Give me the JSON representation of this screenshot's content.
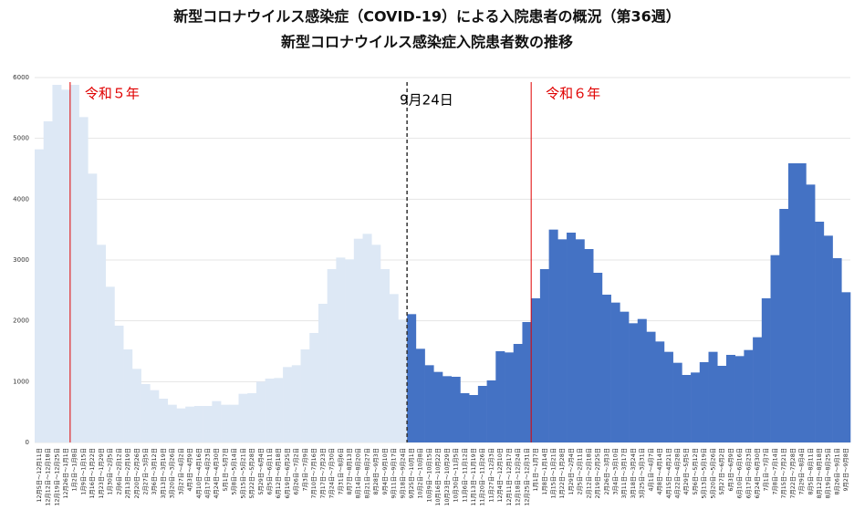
{
  "chart_data": {
    "type": "bar",
    "title": "新型コロナウイルス感染症（COVID-19）による入院患者の概況（第36週）",
    "subtitle": "新型コロナウイルス感染症入院患者数の推移",
    "categories": [
      "12月5日～12月11日",
      "12月12日～12月18日",
      "12月19日～12月25日",
      "12月26日～1月1日",
      "1月2日～1月8日",
      "1月9日～1月15日",
      "1月16日～1月22日",
      "1月23日～1月29日",
      "1月30日～2月5日",
      "2月6日～2月12日",
      "2月13日～2月19日",
      "2月20日～2月26日",
      "2月27日～3月5日",
      "3月6日～3月12日",
      "3月13日～3月19日",
      "3月20日～3月26日",
      "3月27日～4月2日",
      "4月3日～4月9日",
      "4月10日～4月16日",
      "4月17日～4月23日",
      "4月24日～4月30日",
      "5月1日～5月7日",
      "5月8日～5月14日",
      "5月15日～5月21日",
      "5月22日～5月28日",
      "5月29日～6月4日",
      "6月5日～6月11日",
      "6月12日～6月18日",
      "6月19日～6月25日",
      "6月26日～7月2日",
      "7月3日～7月9日",
      "7月10日～7月16日",
      "7月17日～7月23日",
      "7月24日～7月30日",
      "7月31日～8月6日",
      "8月7日～8月13日",
      "8月14日～8月20日",
      "8月21日～8月27日",
      "8月28日～9月3日",
      "9月4日～9月10日",
      "9月11日～9月17日",
      "9月18日～9月24日",
      "9月25日～10月1日",
      "10月2日～10月8日",
      "10月9日～10月15日",
      "10月16日～10月22日",
      "10月23日～10月29日",
      "10月30日～11月5日",
      "11月6日～11月12日",
      "11月13日～11月19日",
      "11月20日～11月26日",
      "11月27日～12月3日",
      "12月4日～12月10日",
      "12月11日～12月17日",
      "12月18日～12月24日",
      "12月25日～12月31日",
      "1月1日～1月7日",
      "1月8日～1月14日",
      "1月15日～1月21日",
      "1月22日～1月28日",
      "1月29日～2月4日",
      "2月5日～2月11日",
      "2月12日～2月18日",
      "2月19日～2月25日",
      "2月26日～3月3日",
      "3月4日～3月10日",
      "3月11日～3月17日",
      "3月18日～3月24日",
      "3月25日～3月31日",
      "4月1日～4月7日",
      "4月8日～4月14日",
      "4月15日～4月21日",
      "4月22日～4月28日",
      "4月29日～5月5日",
      "5月6日～5月12日",
      "5月13日～5月19日",
      "5月20日～5月26日",
      "5月27日～6月2日",
      "6月3日～6月9日",
      "6月10日～6月16日",
      "6月17日～6月23日",
      "6月24日～6月30日",
      "7月1日～7月7日",
      "7月8日～7月14日",
      "7月15日～7月21日",
      "7月22日～7月28日",
      "7月29日～8月4日",
      "8月5日～8月11日",
      "8月12日～8月18日",
      "8月19日～8月25日",
      "8月26日～9月1日",
      "9月2日～9月8日"
    ],
    "series": [
      {
        "color": "#dde8f5",
        "values": [
          4820,
          5280,
          5880,
          5800,
          5880,
          5350,
          4420,
          3250,
          2560,
          1920,
          1530,
          1210,
          960,
          860,
          720,
          620,
          560,
          590,
          600,
          600,
          680,
          620,
          620,
          800,
          810,
          1000,
          1050,
          1060,
          1240,
          1270,
          1530,
          1800,
          2280,
          2850,
          3040,
          3010,
          3350,
          3430,
          3250,
          2850,
          2440,
          2020,
          null,
          null,
          null,
          null,
          null,
          null,
          null,
          null,
          null,
          null,
          null,
          null,
          null,
          null,
          null,
          null,
          null,
          null,
          null,
          null,
          null,
          null,
          null,
          null,
          null,
          null,
          null,
          null,
          null,
          null,
          null,
          null,
          null,
          null,
          null,
          null,
          null,
          null,
          null,
          null,
          null,
          null,
          null,
          null,
          null,
          null,
          null,
          null,
          null,
          null
        ]
      },
      {
        "color": "#4472c4",
        "values": [
          null,
          null,
          null,
          null,
          null,
          null,
          null,
          null,
          null,
          null,
          null,
          null,
          null,
          null,
          null,
          null,
          null,
          null,
          null,
          null,
          null,
          null,
          null,
          null,
          null,
          null,
          null,
          null,
          null,
          null,
          null,
          null,
          null,
          null,
          null,
          null,
          null,
          null,
          null,
          null,
          null,
          null,
          2110,
          1540,
          1270,
          1160,
          1090,
          1080,
          810,
          780,
          930,
          1020,
          1500,
          1480,
          1620,
          1980,
          2370,
          2850,
          3500,
          3340,
          3450,
          3340,
          3180,
          2790,
          2430,
          2300,
          2150,
          1960,
          2030,
          1820,
          1660,
          1490,
          1310,
          1110,
          1150,
          1320,
          1490,
          1260,
          1440,
          1420,
          1520,
          1730,
          2370,
          3080,
          3840,
          4590,
          4590,
          4240,
          3630,
          3400,
          3030,
          2470
        ]
      }
    ],
    "ylim": [
      0,
      6000
    ],
    "yticks": [
      0,
      1000,
      2000,
      3000,
      4000,
      5000,
      6000
    ],
    "grid": true,
    "annotations": [
      {
        "text": "令和５年",
        "after": "12月26日～1月1日",
        "color": "#e00000",
        "style": "solid"
      },
      {
        "text": "9月24日",
        "after": "9月18日～9月24日",
        "color": "#333333",
        "style": "dashed"
      },
      {
        "text": "令和６年",
        "after": "12月25日～12月31日",
        "color": "#e00000",
        "style": "solid"
      }
    ]
  }
}
